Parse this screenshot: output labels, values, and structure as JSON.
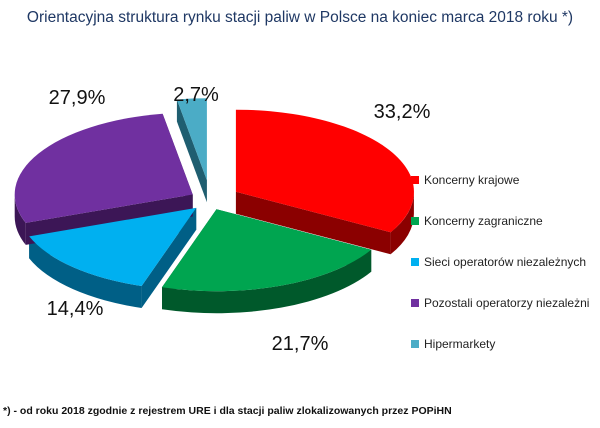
{
  "chart_data": {
    "type": "pie",
    "title": "Orientacyjna struktura rynku stacji paliw w Polsce na koniec marca 2018 roku *)",
    "legend_position": "right",
    "slices": [
      {
        "label": "Koncerny krajowe",
        "value": 33.2,
        "value_label": "33,2%",
        "color": "#ff0000",
        "side_color": "#8b0000"
      },
      {
        "label": "Koncerny zagraniczne",
        "value": 21.7,
        "value_label": "21,7%",
        "color": "#00a550",
        "side_color": "#00592b"
      },
      {
        "label": "Sieci operatorów niezależnych",
        "value": 14.4,
        "value_label": "14,4%",
        "color": "#00b0f0",
        "side_color": "#005f86"
      },
      {
        "label": "Pozostali operatorzy niezależni",
        "value": 27.9,
        "value_label": "27,9%",
        "color": "#7030a0",
        "side_color": "#3c1656"
      },
      {
        "label": "Hipermarkety",
        "value": 2.7,
        "value_label": "2,7%",
        "color": "#4bacc6",
        "side_color": "#1f5e70"
      }
    ],
    "footnote": "*) - od roku 2018 zgodnie z rejestrem URE i dla stacji paliw zlokalizowanych przez POPiHN"
  }
}
